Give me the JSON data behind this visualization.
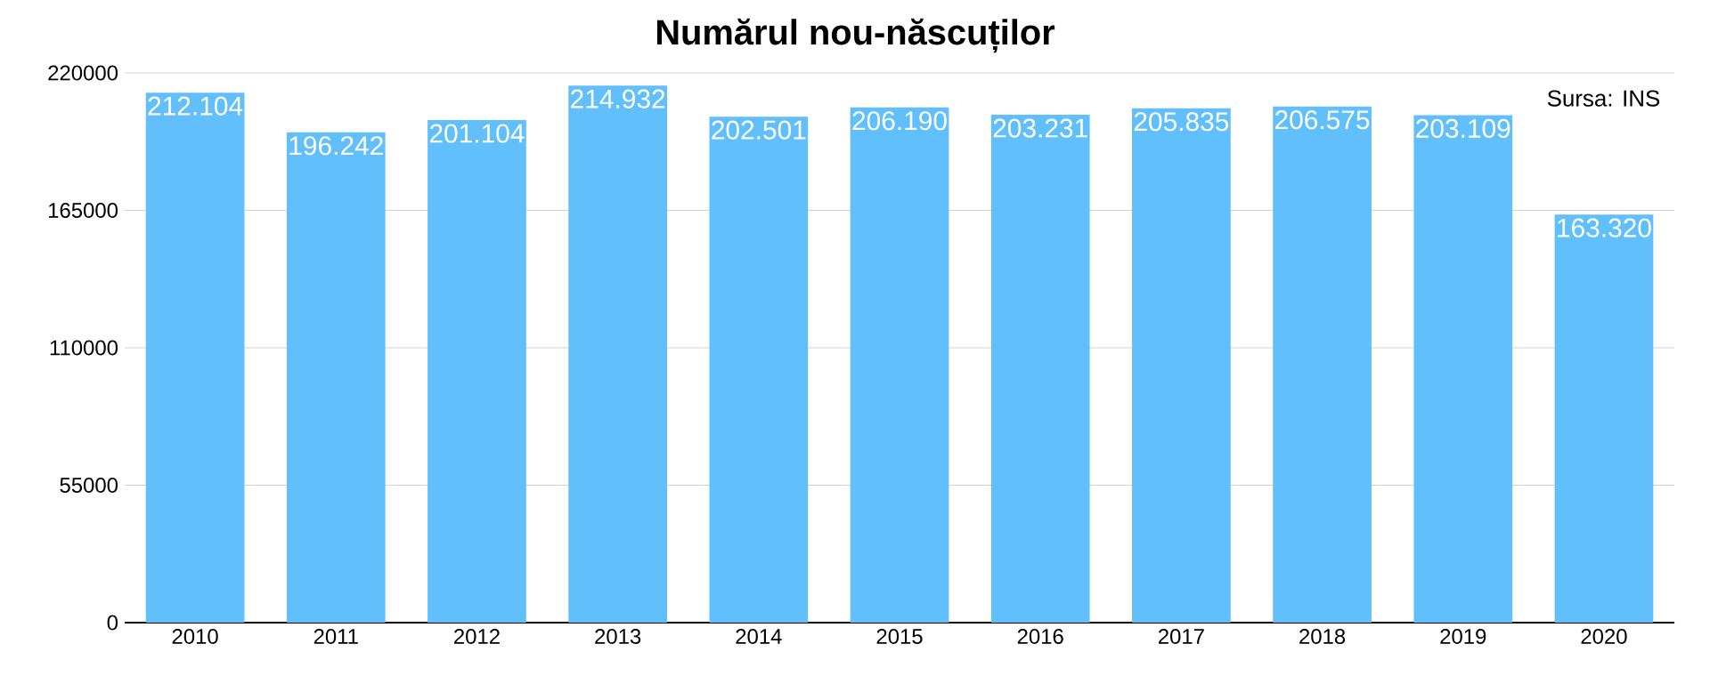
{
  "chart_data": {
    "type": "bar",
    "title": "Numărul nou-născuților",
    "categories": [
      "2010",
      "2011",
      "2012",
      "2013",
      "2014",
      "2015",
      "2016",
      "2017",
      "2018",
      "2019",
      "2020"
    ],
    "values": [
      212104,
      196242,
      201104,
      214932,
      202501,
      206190,
      203231,
      205835,
      206575,
      203109,
      163320
    ],
    "value_labels": [
      "212.104",
      "196.242",
      "201.104",
      "214.932",
      "202.501",
      "206.190",
      "203.231",
      "205.835",
      "206.575",
      "203.109",
      "163.320"
    ],
    "color": "#61c0fb",
    "ylim": [
      0,
      220000
    ],
    "yticks": [
      0,
      55000,
      110000,
      165000,
      220000
    ],
    "grid": "y",
    "annotations": [
      "Sursa: INS"
    ]
  }
}
